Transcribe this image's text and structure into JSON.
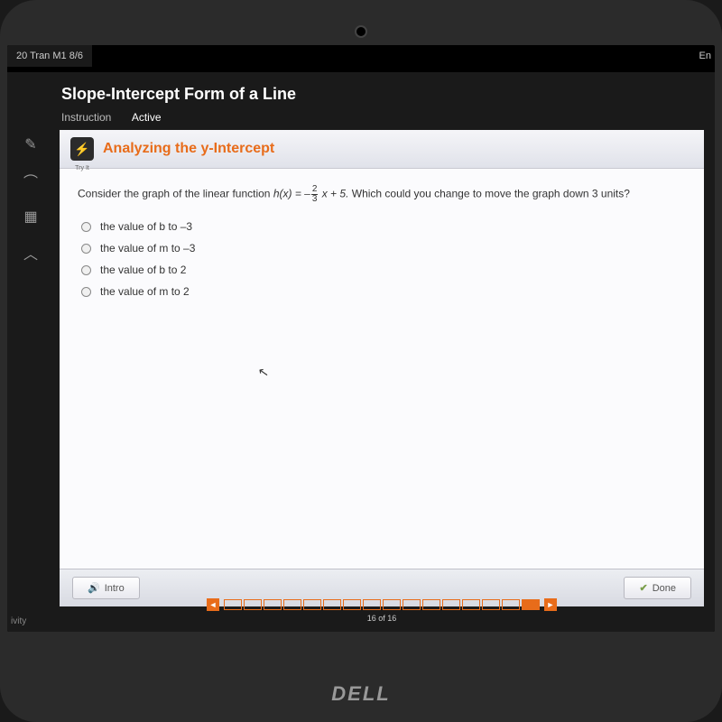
{
  "browser": {
    "tab_label": "20 Tran M1 8/6",
    "top_right": "En"
  },
  "header": {
    "title": "Slope-Intercept Form of a Line",
    "tabs": [
      {
        "label": "Instruction",
        "active": false
      },
      {
        "label": "Active",
        "active": true
      }
    ]
  },
  "section": {
    "badge_label": "Try It",
    "title": "Analyzing the y-Intercept"
  },
  "question": {
    "prefix": "Consider the graph of the linear function ",
    "func": "h(x) = –",
    "frac_num": "2",
    "frac_den": "3",
    "mid": " x + 5. ",
    "rest": "Which could you change to move the graph down 3 units?",
    "options": [
      "the value of b to –3",
      "the value of m to –3",
      "the value of b to 2",
      "the value of m to 2"
    ]
  },
  "footer": {
    "intro": "Intro",
    "done": "Done"
  },
  "progress": {
    "total_boxes": 16,
    "filled_index": 15,
    "label": "16 of 16"
  },
  "misc": {
    "activity": "ivity",
    "brand": "DELL"
  },
  "colors": {
    "accent": "#e86c1a",
    "bg_dark": "#1a1a1a",
    "panel": "#ffffff"
  }
}
